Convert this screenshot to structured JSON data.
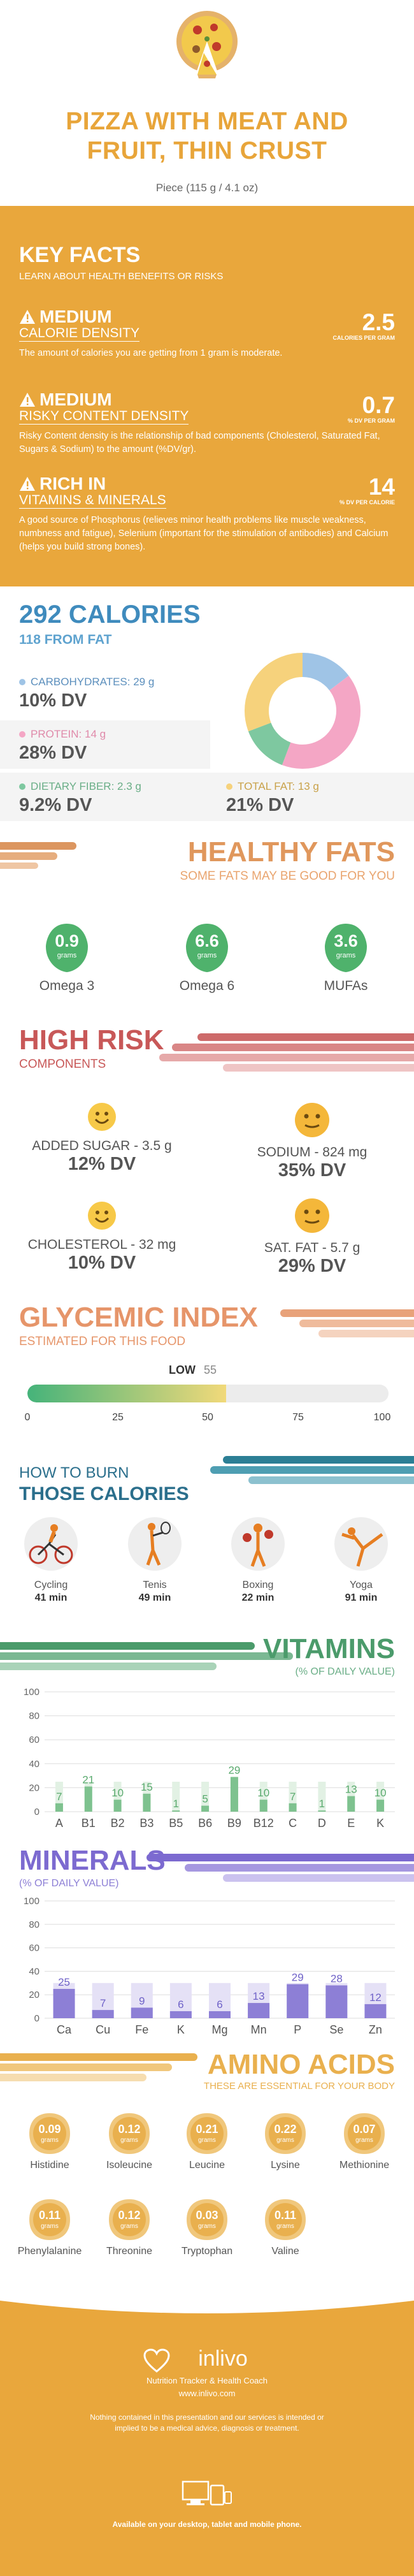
{
  "header": {
    "title_line1": "PIZZA WITH MEAT AND",
    "title_line2": "FRUIT, THIN CRUST",
    "serving": "Piece (115 g / 4.1 oz)"
  },
  "key_facts": {
    "title": "KEY FACTS",
    "subtitle": "LEARN ABOUT HEALTH BENEFITS OR RISKS",
    "items": [
      {
        "level": "MEDIUM",
        "name": "CALORIE DENSITY",
        "value": "2.5",
        "unit": "CALORIES PER GRAM",
        "desc": "The amount of calories you are getting from 1 gram is moderate."
      },
      {
        "level": "MEDIUM",
        "name": "RISKY CONTENT DENSITY",
        "value": "0.7",
        "unit": "% DV PER GRAM",
        "desc": "Risky Content density is the relationship of bad components (Cholesterol, Saturated Fat, Sugars & Sodium) to the amount (%DV/gr)."
      },
      {
        "level": "RICH  IN",
        "name": "VITAMINS & MINERALS",
        "value": "14",
        "unit": "% DV PER CALORIE",
        "desc": "A good source of Phosphorus (relieves minor health problems like muscle weakness, numbness and fatigue), Selenium (important for the stimulation of antibodies) and Calcium (helps you build strong bones)."
      }
    ]
  },
  "calories": {
    "title": "292 CALORIES",
    "subtitle": "118 FROM FAT",
    "macros": [
      {
        "label": "CARBOHYDRATES: 29 g",
        "dv": "10% DV",
        "color": "#9fc4e6"
      },
      {
        "label": "PROTEIN: 14 g",
        "dv": "28% DV",
        "color": "#f4a6c5"
      },
      {
        "label": "DIETARY FIBER: 2.3 g",
        "dv": "9.2% DV",
        "color": "#7ec8a0"
      },
      {
        "label": "TOTAL FAT: 13 g",
        "dv": "21% DV",
        "color": "#f6d27c"
      }
    ]
  },
  "healthy_fats": {
    "title": "HEALTHY FATS",
    "subtitle": "SOME FATS MAY BE GOOD FOR YOU",
    "unit": "grams",
    "items": [
      {
        "name": "Omega 3",
        "value": "0.9"
      },
      {
        "name": "Omega 6",
        "value": "6.6"
      },
      {
        "name": "MUFAs",
        "value": "3.6"
      }
    ]
  },
  "high_risk": {
    "title": "HIGH RISK",
    "subtitle": "COMPONENTS",
    "items": [
      {
        "label": "ADDED SUGAR - 3.5 g",
        "dv": "12% DV"
      },
      {
        "label": "SODIUM - 824 mg",
        "dv": "35% DV"
      },
      {
        "label": "CHOLESTEROL - 32 mg",
        "dv": "10% DV"
      },
      {
        "label": "SAT. FAT - 5.7 g",
        "dv": "29% DV"
      }
    ]
  },
  "glycemic": {
    "title": "GLYCEMIC INDEX",
    "subtitle": "ESTIMATED FOR THIS FOOD",
    "level": "LOW",
    "value": 55,
    "value_label": "55",
    "ticks": [
      "0",
      "25",
      "50",
      "75",
      "100"
    ]
  },
  "burn": {
    "title_line1": "HOW TO BURN",
    "title_line2": "THOSE CALORIES",
    "items": [
      {
        "name": "Cycling",
        "minutes": "41 min"
      },
      {
        "name": "Tenis",
        "minutes": "49 min"
      },
      {
        "name": "Boxing",
        "minutes": "22 min"
      },
      {
        "name": "Yoga",
        "minutes": "91 min"
      }
    ]
  },
  "vitamins": {
    "title": "VITAMINS",
    "subtitle": "(% OF DAILY VALUE)",
    "colors": {
      "bar": "#7ec28f",
      "bg": "#e2f1e4",
      "label": "#5aaa6e"
    }
  },
  "minerals": {
    "title": "MINERALS",
    "subtitle": "(% OF DAILY VALUE)",
    "colors": {
      "bar": "#8d7fd6",
      "bg": "#e5e1f6",
      "label": "#6f62c8"
    }
  },
  "amino": {
    "title": "AMINO ACIDS",
    "subtitle": "THESE ARE ESSENTIAL FOR YOUR BODY",
    "unit": "grams",
    "items": [
      {
        "name": "Histidine",
        "value": "0.09"
      },
      {
        "name": "Isoleucine",
        "value": "0.12"
      },
      {
        "name": "Leucine",
        "value": "0.21"
      },
      {
        "name": "Lysine",
        "value": "0.22"
      },
      {
        "name": "Methionine",
        "value": "0.07"
      },
      {
        "name": "Phenylalanine",
        "value": "0.11"
      },
      {
        "name": "Threonine",
        "value": "0.12"
      },
      {
        "name": "Tryptophan",
        "value": "0.03"
      },
      {
        "name": "Valine",
        "value": "0.11"
      }
    ]
  },
  "footer": {
    "brand": "inlivo",
    "tagline": "Nutrition Tracker & Health Coach",
    "url": "www.inlivo.com",
    "disclaimer": "Nothing contained in this presentation and our services is intended or implied to be a medical advice, diagnosis or treatment.",
    "available": "Available on your desktop, tablet and mobile phone."
  },
  "chart_data": [
    {
      "type": "pie",
      "categories": [
        "CARBOHYDRATES",
        "PROTEIN",
        "DIETARY FIBER",
        "TOTAL FAT"
      ],
      "values": [
        10,
        28,
        9.2,
        21
      ]
    },
    {
      "type": "bar",
      "title": "VITAMINS",
      "subtitle": "(% OF DAILY VALUE)",
      "categories": [
        "A",
        "B1",
        "B2",
        "B3",
        "B5",
        "B6",
        "B9",
        "B12",
        "C",
        "D",
        "E",
        "K"
      ],
      "values": [
        7,
        21,
        10,
        15,
        1,
        5,
        29,
        10,
        7,
        1,
        13,
        10
      ],
      "ylim": [
        0,
        100
      ],
      "yticks": [
        0,
        20,
        40,
        60,
        80,
        100
      ]
    },
    {
      "type": "bar",
      "title": "MINERALS",
      "subtitle": "(% OF DAILY VALUE)",
      "categories": [
        "Ca",
        "Cu",
        "Fe",
        "K",
        "Mg",
        "Mn",
        "P",
        "Se",
        "Zn"
      ],
      "values": [
        25,
        7,
        9,
        6,
        6,
        13,
        29,
        28,
        12
      ],
      "ylim": [
        0,
        100
      ],
      "yticks": [
        0,
        20,
        40,
        60,
        80,
        100
      ]
    }
  ]
}
